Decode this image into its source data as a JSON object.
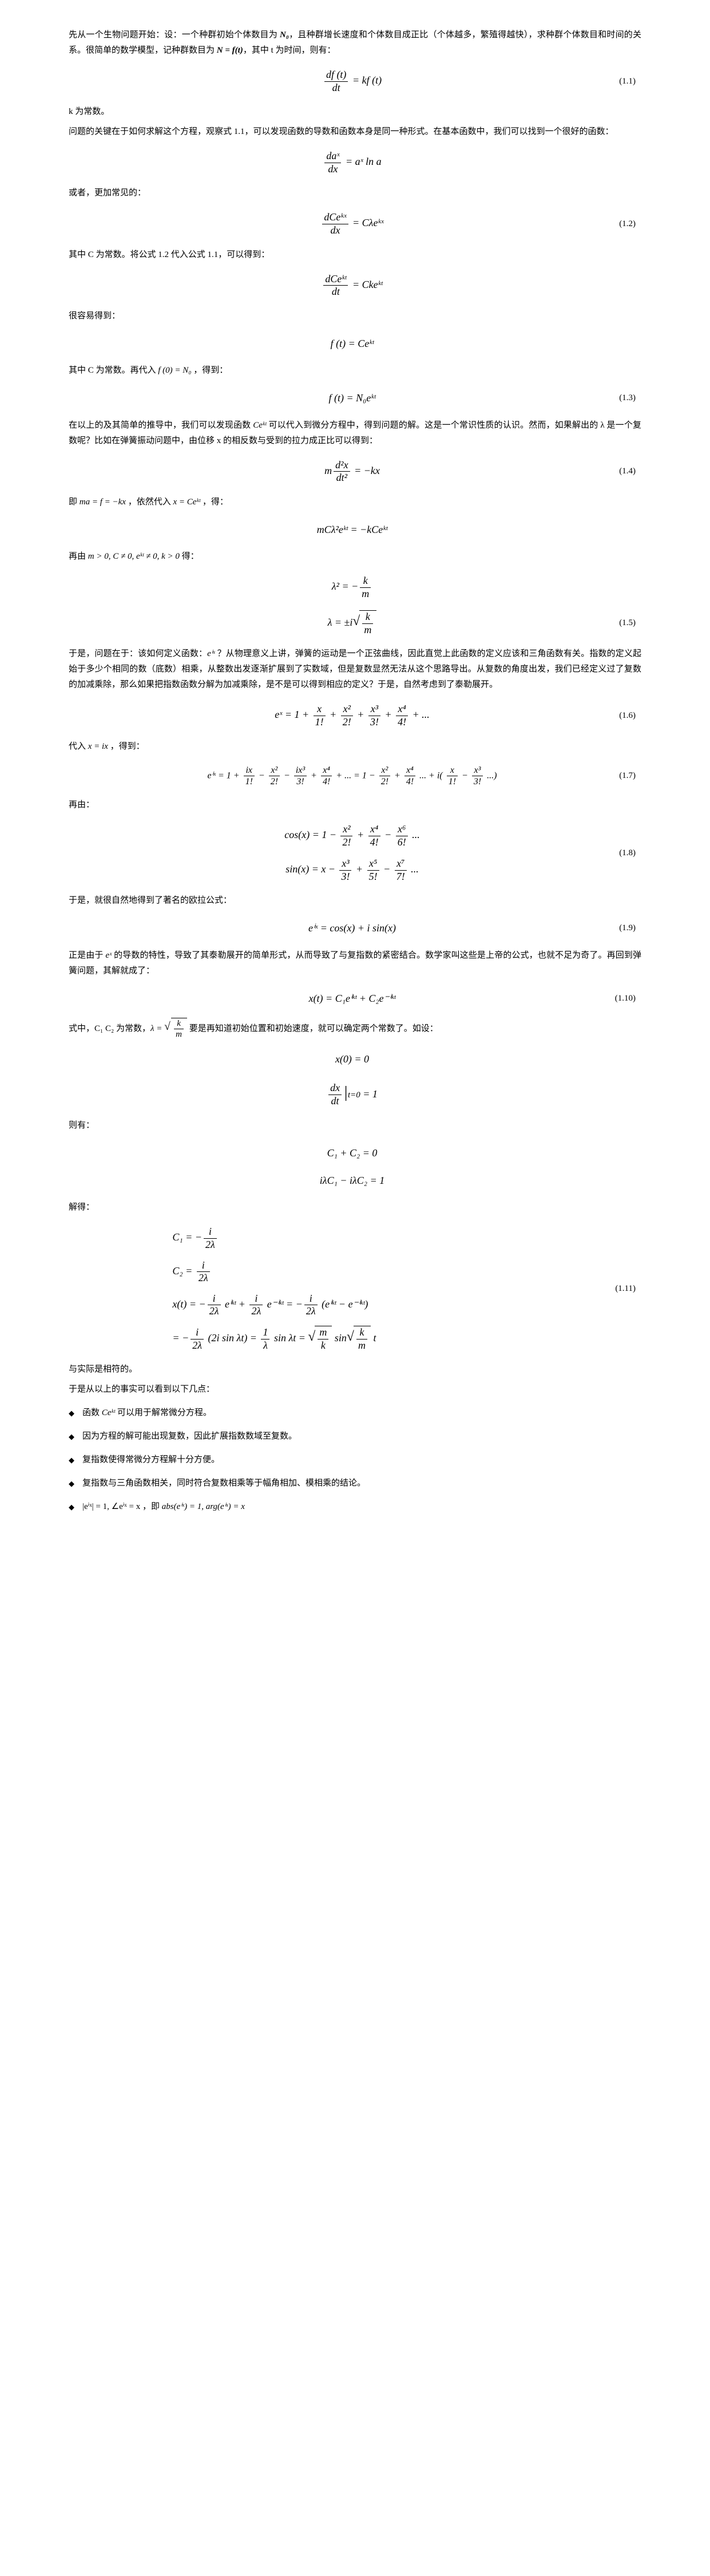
{
  "p1a": "先从一个生物问题开始：设：一个种群初始个体数目为 ",
  "p1_N0": "N₀",
  "p1b": "，且种群增长速度和个体数目成正比（个体越多，繁殖得越快），求种群个体数目和时间的关系。很简单的数学模型，记种群数目为 ",
  "p1_Neq": "N = f(t)",
  "p1c": "，其中 t 为时间，则有：",
  "eq1_1_lhs_num": "df (t)",
  "eq1_1_lhs_den": "dt",
  "eq1_1_rhs": " = kf (t)",
  "eq1_1_no": "(1.1)",
  "p2": "k 为常数。",
  "p3": "问题的关键在于如何求解这个方程，观察式 1.1，可以发现函数的导数和函数本身是同一种形式。在基本函数中，我们可以找到一个很好的函数：",
  "eq_da_num": "daˣ",
  "eq_da_den": "dx",
  "eq_da_rhs": " = aˣ ln a",
  "p4": "或者，更加常见的：",
  "eq1_2_num": "dCeᵏˣ",
  "eq1_2_den": "dx",
  "eq1_2_rhs": " = Cλeᵏˣ",
  "eq1_2_no": "(1.2)",
  "p5": "其中 C 为常数。将公式 1.2 代入公式 1.1，可以得到：",
  "eq_ck_num": "dCeᵏᵗ",
  "eq_ck_den": "dt",
  "eq_ck_rhs": " = Ckeᵏᵗ",
  "p6": "很容易得到：",
  "eq_ft": "f (t) = Ceᵏᵗ",
  "p7a": "其中 C 为常数。再代入 ",
  "p7_fn": "f (0) = N₀",
  "p7b": " ，得到：",
  "eq1_3": "f (t) = N₀eᵏᵗ",
  "eq1_3_no": "(1.3)",
  "p8a": "在以上的及其简单的推导中，我们可以发现函数 ",
  "p8_Ce": "Ceᵏᵗ",
  "p8b": " 可以代入到微分方程中，得到问题的解。这是一个常识性质的认识。然而，如果解出的 λ 是一个复数呢？比如在弹簧振动问题中，由位移 x 的相反数与受到的拉力成正比可以得到：",
  "eq1_4_m": "m",
  "eq1_4_num": "d²x",
  "eq1_4_den": "dt²",
  "eq1_4_rhs": " = −kx",
  "eq1_4_no": "(1.4)",
  "p9a": "即 ",
  "p9_ma": "ma = f = −kx",
  "p9b": " ，依然代入 ",
  "p9_x": "x = Ceᵏᵗ",
  "p9c": " ，得：",
  "eq_mc": "mCλ²eᵏᵗ = −kCeᵏᵗ",
  "p10a": "再由 ",
  "p10_cond": "m > 0, C ≠ 0, eᵏᵗ ≠ 0, k > 0",
  "p10b": " 得：",
  "eq_lam2_l": "λ² = −",
  "eq_lam2_num": "k",
  "eq_lam2_den": "m",
  "eq1_5_l": "λ = ±i",
  "eq1_5_num": "k",
  "eq1_5_den": "m",
  "eq1_5_no": "(1.5)",
  "p11a": "于是，问题在于：该如何定义函数：",
  "p11_eix": "eⁱˣ",
  "p11b": " ？从物理意义上讲，弹簧的运动是一个正弦曲线，因此直觉上此函数的定义应该和三角函数有关。指数的定义起始于多少个相同的数（底数）相乘，从整数出发逐渐扩展到了实数域，但是复数显然无法从这个思路导出。从复数的角度出发，我们已经定义过了复数的加减乘除，那么如果把指数函数分解为加减乘除，是不是可以得到相应的定义？于是，自然考虑到了泰勒展开。",
  "eq1_6_l": "eˣ = 1 + ",
  "eq1_6_t1n": "x",
  "eq1_6_t1d": "1!",
  "eq1_6_t2n": "x²",
  "eq1_6_t2d": "2!",
  "eq1_6_t3n": "x³",
  "eq1_6_t3d": "3!",
  "eq1_6_t4n": "x⁴",
  "eq1_6_t4d": "4!",
  "eq1_6_no": "(1.6)",
  "p12a": "代入 ",
  "p12_sub": "x = ix",
  "p12b": " ，得到：",
  "eq1_7_l": "eⁱˣ = 1 + ",
  "eq1_7_a1n": "ix",
  "eq1_7_a1d": "1!",
  "eq1_7_a2n": "x²",
  "eq1_7_a2d": "2!",
  "eq1_7_a3n": "ix³",
  "eq1_7_a3d": "3!",
  "eq1_7_a4n": "x⁴",
  "eq1_7_a4d": "4!",
  "eq1_7_mid": " + ... = 1 − ",
  "eq1_7_b2n": "x²",
  "eq1_7_b2d": "2!",
  "eq1_7_b4n": "x⁴",
  "eq1_7_b4d": "4!",
  "eq1_7_i": " ... + i(",
  "eq1_7_c1n": "x",
  "eq1_7_c1d": "1!",
  "eq1_7_c3n": "x³",
  "eq1_7_c3d": "3!",
  "eq1_7_end": " ...)",
  "eq1_7_no": "(1.7)",
  "p13": "再由：",
  "eq1_8_cos_l": "cos(x) = 1 − ",
  "eq1_8_cn2": "x²",
  "eq1_8_cd2": "2!",
  "eq1_8_cn4": "x⁴",
  "eq1_8_cd4": "4!",
  "eq1_8_cn6": "x⁶",
  "eq1_8_cd6": "6!",
  "eq1_8_sin_l": "sin(x) = x − ",
  "eq1_8_sn3": "x³",
  "eq1_8_sd3": "3!",
  "eq1_8_sn5": "x⁵",
  "eq1_8_sd5": "5!",
  "eq1_8_sn7": "x⁷",
  "eq1_8_sd7": "7!",
  "eq1_8_no": "(1.8)",
  "p14": "于是，就很自然地得到了著名的欧拉公式：",
  "eq1_9": "eⁱˣ = cos(x) + i sin(x)",
  "eq1_9_no": "(1.9)",
  "p15a": "正是由于 ",
  "p15_ex": "eˣ",
  "p15b": " 的导数的特性，导致了其泰勒展开的简单形式，从而导致了与复指数的紧密结合。数学家叫这些是上帝的公式，也就不足为奇了。再回到弹簧问题，其解就成了：",
  "eq1_10": "x(t) = C₁eⁱᵏᵗ + C₂e⁻ⁱᵏᵗ",
  "eq1_10_no": "(1.10)",
  "p16a": "式中，C₁ C₂ 为常数，",
  "p16_lam": "λ = ",
  "p16_num": "k",
  "p16_den": "m",
  "p16b": " 要是再知道初始位置和初始速度，就可以确定两个常数了。如设：",
  "eq_ic1": "x(0) = 0",
  "eq_ic2_num": "dx",
  "eq_ic2_den": "dt",
  "eq_ic2_sub": "t=0",
  "eq_ic2_rhs": " = 1",
  "p17": "则有：",
  "eq_c12a": "C₁ + C₂ = 0",
  "eq_c12b": "iλC₁ − iλC₂ = 1",
  "p18": "解得：",
  "eq1_11_c1l": "C₁ = −",
  "eq1_11_c1n": "i",
  "eq1_11_c1d": "2λ",
  "eq1_11_c2l": "C₂ = ",
  "eq1_11_c2n": "i",
  "eq1_11_c2d": "2λ",
  "eq1_11_x_l": "x(t) = −",
  "eq1_11_xin": "i",
  "eq1_11_xid": "2λ",
  "eq1_11_x_m1": " eⁱᵏᵗ + ",
  "eq1_11_x_m2": " e⁻ⁱᵏᵗ = −",
  "eq1_11_x_r": " (eⁱᵏᵗ − e⁻ⁱᵏᵗ)",
  "eq1_11_l2a": " = −",
  "eq1_11_l2b": " (2i sin λt) = ",
  "eq1_11_l2_1n": "1",
  "eq1_11_l2_1d": "λ",
  "eq1_11_l2c": " sin λt = ",
  "eq1_11_sqn": "m",
  "eq1_11_sqd": "k",
  "eq1_11_l2d": " sin",
  "eq1_11_sq2n": "k",
  "eq1_11_sq2d": "m",
  "eq1_11_l2e": " t",
  "eq1_11_no": "(1.11)",
  "p19": "与实际是相符的。",
  "p20": "于是从以上的事实可以看到以下几点：",
  "b1a": "函数 ",
  "b1_ce": "Ceᵏᵗ",
  "b1b": " 可以用于解常微分方程。",
  "b2": "因为方程的解可能出现复数，因此扩展指数数域至复数。",
  "b3": "复指数使得常微分方程解十分方便。",
  "b4": "复指数与三角函数相关，同时符合复数相乘等于幅角相加、模相乘的结论。",
  "b5a": "|eⁱˣ| = 1, ∠eⁱˣ = x",
  "b5b": " ，即 ",
  "b5c": "abs(eⁱˣ) = 1, arg(eⁱˣ) = x"
}
